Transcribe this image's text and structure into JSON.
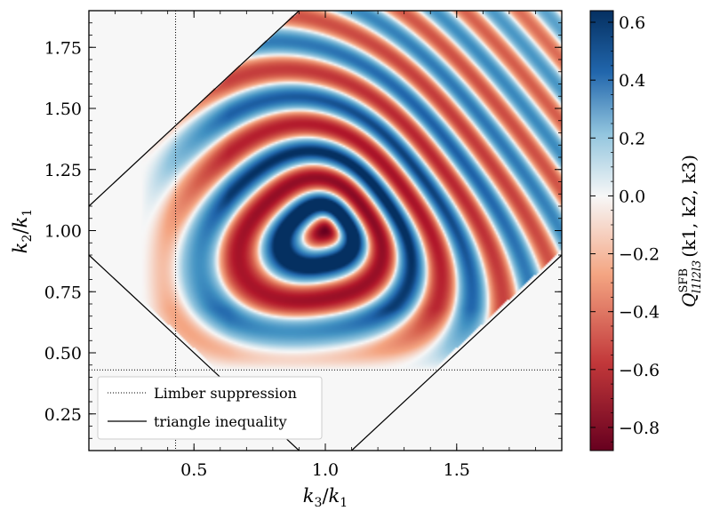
{
  "chart_data": {
    "type": "heatmap",
    "xlabel": "k3/k1",
    "ylabel": "k2/k1",
    "x_label_parts": {
      "num": "k",
      "num_sub": "3",
      "den": "k",
      "den_sub": "1"
    },
    "y_label_parts": {
      "num": "k",
      "num_sub": "2",
      "den": "k",
      "den_sub": "1"
    },
    "xlim": [
      0.1,
      1.9
    ],
    "ylim": [
      0.1,
      1.9
    ],
    "x_ticks": [
      0.5,
      1.0,
      1.5
    ],
    "x_tick_labels": [
      "0.5",
      "1.0",
      "1.5"
    ],
    "y_ticks": [
      0.25,
      0.5,
      0.75,
      1.0,
      1.25,
      1.5,
      1.75
    ],
    "y_tick_labels": [
      "0.25",
      "0.50",
      "0.75",
      "1.00",
      "1.25",
      "1.50",
      "1.75"
    ],
    "colorbar": {
      "label": "Q^SFB_{l1l2l3}(k1, k2, k3)",
      "label_main": "Q",
      "label_sup": "SFB",
      "label_sub": "l1l2l3",
      "label_args": "(k1, k2, k3)",
      "vmin": -0.88,
      "vmax": 0.64,
      "ticks": [
        -0.8,
        -0.6,
        -0.4,
        -0.2,
        0.0,
        0.2,
        0.4,
        0.6
      ],
      "tick_labels": [
        "−0.8",
        "−0.6",
        "−0.4",
        "−0.2",
        "0.0",
        "0.2",
        "0.4",
        "0.6"
      ],
      "colormap": "RdBu"
    },
    "colors": {
      "negative": "#67001f",
      "zero": "#f7f7f7",
      "positive": "#053061"
    },
    "pattern": {
      "description_note": "oscillating stripes centered at (1.0, 1.0), zero outside triangle inequality",
      "center": [
        1.0,
        1.0
      ],
      "peak_value": -0.88
    },
    "lines": [
      {
        "name": "Limber suppression",
        "style": "dotted",
        "x_value": 0.43,
        "y_value": 0.43
      },
      {
        "name": "triangle inequality",
        "style": "solid",
        "equations": [
          "k2 = k3 + 1",
          "k2 = k3 - 1",
          "k2 = 1 - k3"
        ]
      }
    ],
    "legend": {
      "position": "lower-left",
      "entries": [
        {
          "label": "Limber suppression",
          "style": "dotted"
        },
        {
          "label": "triangle inequality",
          "style": "solid"
        }
      ]
    }
  }
}
